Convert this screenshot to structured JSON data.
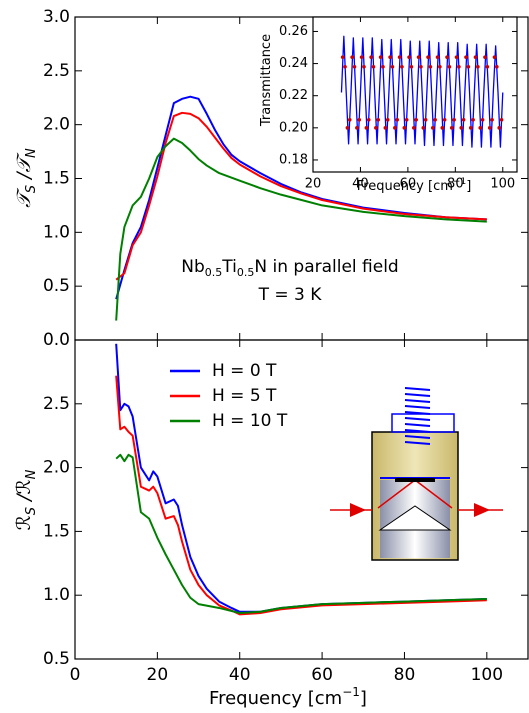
{
  "chart_data": [
    {
      "type": "line",
      "ylabel_parts": [
        "𝒯",
        "S",
        " /𝒯",
        "N"
      ],
      "annotation_parts": [
        "Nb",
        "0.5",
        "Ti",
        "0.5",
        "N in parallel field"
      ],
      "annotation2": "T = 3 K",
      "xlim": [
        0,
        110
      ],
      "xticks": [
        0,
        20,
        40,
        60,
        80,
        100
      ],
      "ylim": [
        0,
        3
      ],
      "yticks": [
        {
          "value": 0,
          "label": "0.0"
        },
        {
          "value": 0.5,
          "label": "0.5"
        },
        {
          "value": 1,
          "label": "1.0"
        },
        {
          "value": 1.5,
          "label": "1.5"
        },
        {
          "value": 2,
          "label": "2.0"
        },
        {
          "value": 2.5,
          "label": "2.5"
        },
        {
          "value": 3,
          "label": "3.0"
        }
      ],
      "series": [
        {
          "color": "#0000ff",
          "x": [
            10,
            12,
            14,
            16,
            18,
            20,
            22,
            24,
            26,
            28,
            30,
            32,
            34,
            36,
            38,
            40,
            45,
            50,
            55,
            60,
            70,
            80,
            90,
            100
          ],
          "values": [
            0.38,
            0.65,
            0.9,
            1.05,
            1.3,
            1.6,
            1.9,
            2.2,
            2.24,
            2.26,
            2.24,
            2.1,
            1.95,
            1.82,
            1.72,
            1.66,
            1.55,
            1.45,
            1.37,
            1.31,
            1.23,
            1.18,
            1.14,
            1.12
          ]
        },
        {
          "color": "#ff0000",
          "x": [
            10,
            12,
            14,
            16,
            18,
            20,
            22,
            24,
            26,
            28,
            30,
            32,
            34,
            36,
            38,
            40,
            45,
            50,
            55,
            60,
            70,
            80,
            90,
            100
          ],
          "values": [
            0.56,
            0.62,
            0.88,
            1.0,
            1.25,
            1.52,
            1.83,
            2.08,
            2.11,
            2.1,
            2.06,
            1.98,
            1.88,
            1.78,
            1.69,
            1.63,
            1.52,
            1.43,
            1.36,
            1.3,
            1.22,
            1.17,
            1.14,
            1.12
          ]
        },
        {
          "color": "#008000",
          "x": [
            10,
            11,
            12,
            14,
            16,
            18,
            20,
            22,
            24,
            26,
            28,
            30,
            32,
            35,
            40,
            45,
            50,
            55,
            60,
            70,
            80,
            90,
            100
          ],
          "values": [
            0.18,
            0.8,
            1.05,
            1.25,
            1.33,
            1.5,
            1.7,
            1.8,
            1.87,
            1.83,
            1.76,
            1.68,
            1.62,
            1.55,
            1.48,
            1.41,
            1.35,
            1.3,
            1.25,
            1.19,
            1.15,
            1.12,
            1.1
          ]
        }
      ]
    },
    {
      "type": "line",
      "ylabel_parts": [
        "ℛ",
        "S",
        " /ℛ",
        "N"
      ],
      "xlabel_parts": [
        "Frequency [cm",
        "−1",
        "]"
      ],
      "xlim": [
        0,
        110
      ],
      "xticks": [
        0,
        20,
        40,
        60,
        80,
        100
      ],
      "ylim": [
        0.5,
        3
      ],
      "yticks": [
        {
          "value": 0.5,
          "label": "0.5"
        },
        {
          "value": 1,
          "label": "1.0"
        },
        {
          "value": 1.5,
          "label": "1.5"
        },
        {
          "value": 2,
          "label": "2.0"
        },
        {
          "value": 2.5,
          "label": "2.5"
        }
      ],
      "legend": "upper left",
      "series": [
        {
          "name": "H = 0 T",
          "color": "#0000ff",
          "x": [
            10,
            11,
            12,
            13,
            14,
            16,
            18,
            19,
            20,
            22,
            24,
            25,
            26,
            28,
            30,
            32,
            35,
            38,
            40,
            45,
            50,
            60,
            70,
            80,
            90,
            100
          ],
          "values": [
            2.97,
            2.45,
            2.5,
            2.48,
            2.4,
            2.0,
            1.9,
            1.97,
            1.93,
            1.72,
            1.75,
            1.7,
            1.55,
            1.3,
            1.15,
            1.05,
            0.95,
            0.9,
            0.87,
            0.87,
            0.9,
            0.93,
            0.94,
            0.95,
            0.96,
            0.97
          ]
        },
        {
          "name": "H = 5 T",
          "color": "#ff0000",
          "x": [
            10,
            11,
            12,
            13,
            14,
            16,
            18,
            19,
            20,
            22,
            24,
            25,
            26,
            28,
            30,
            32,
            35,
            38,
            40,
            45,
            50,
            60,
            70,
            80,
            90,
            100
          ],
          "values": [
            2.72,
            2.3,
            2.32,
            2.28,
            2.25,
            1.85,
            1.82,
            1.85,
            1.8,
            1.6,
            1.62,
            1.55,
            1.42,
            1.2,
            1.08,
            1.0,
            0.92,
            0.88,
            0.85,
            0.86,
            0.89,
            0.92,
            0.93,
            0.94,
            0.95,
            0.96
          ]
        },
        {
          "name": "H = 10 T",
          "color": "#008000",
          "x": [
            10,
            11,
            12,
            13,
            14,
            16,
            18,
            20,
            22,
            24,
            26,
            28,
            30,
            35,
            40,
            45,
            50,
            60,
            70,
            80,
            90,
            100
          ],
          "values": [
            2.07,
            2.1,
            2.05,
            2.1,
            2.08,
            1.65,
            1.6,
            1.45,
            1.32,
            1.2,
            1.08,
            0.98,
            0.93,
            0.9,
            0.86,
            0.87,
            0.9,
            0.93,
            0.94,
            0.95,
            0.96,
            0.97
          ]
        }
      ]
    },
    {
      "type": "line",
      "ylabel": "Transmittance",
      "xlabel_parts": [
        "Frequency [cm",
        "−1",
        "]"
      ],
      "xlim": [
        20,
        106
      ],
      "xticks": [
        20,
        40,
        60,
        80,
        100
      ],
      "ylim": [
        0.1725,
        0.269
      ],
      "yticks": [
        0.18,
        {
          "value": 0.2,
          "label": "0.20"
        },
        0.22,
        0.24,
        0.26
      ],
      "series": [
        {
          "color": "#0000ff",
          "x": [
            32,
            33,
            34,
            35,
            36,
            37,
            38,
            39,
            40,
            41,
            42,
            43,
            44,
            45,
            46,
            47,
            48,
            49,
            50,
            51,
            52,
            53,
            54,
            55,
            56,
            57,
            58,
            59,
            60,
            61,
            62,
            63,
            64,
            65,
            66,
            67,
            68,
            69,
            70,
            71,
            72,
            73,
            74,
            75,
            76,
            77,
            78,
            79,
            80,
            81,
            82,
            83,
            84,
            85,
            86,
            87,
            88,
            89,
            90,
            91,
            92,
            93,
            94,
            95,
            96,
            97,
            98,
            99,
            100
          ],
          "values": [
            0.222,
            0.257,
            0.222,
            0.19,
            0.222,
            0.256,
            0.222,
            0.19,
            0.222,
            0.256,
            0.222,
            0.19,
            0.222,
            0.256,
            0.222,
            0.19,
            0.222,
            0.255,
            0.222,
            0.19,
            0.222,
            0.255,
            0.222,
            0.19,
            0.222,
            0.255,
            0.222,
            0.19,
            0.222,
            0.254,
            0.222,
            0.19,
            0.222,
            0.254,
            0.222,
            0.189,
            0.222,
            0.254,
            0.222,
            0.189,
            0.222,
            0.253,
            0.222,
            0.189,
            0.222,
            0.253,
            0.222,
            0.189,
            0.222,
            0.253,
            0.222,
            0.189,
            0.222,
            0.252,
            0.222,
            0.188,
            0.222,
            0.252,
            0.222,
            0.188,
            0.222,
            0.252,
            0.222,
            0.188,
            0.222,
            0.251,
            0.222,
            0.188,
            0.222
          ]
        },
        {
          "color": "#cc0000",
          "marker": true,
          "x": [
            32.5,
            33.5,
            34.5,
            35.5,
            36.5,
            37.5,
            38.5,
            39.5,
            40.5,
            41.5,
            42.5,
            43.5,
            44.5,
            45.5,
            46.5,
            47.5,
            48.5,
            49.5,
            50.5,
            51.5,
            52.5,
            53.5,
            54.5,
            55.5,
            56.5,
            57.5,
            58.5,
            59.5,
            60.5,
            61.5,
            62.5,
            63.5,
            64.5,
            65.5,
            66.5,
            67.5,
            68.5,
            69.5,
            70.5,
            71.5,
            72.5,
            73.5,
            74.5,
            75.5,
            76.5,
            77.5,
            78.5,
            79.5,
            80.5,
            81.5,
            82.5,
            83.5,
            84.5,
            85.5,
            86.5,
            87.5,
            88.5,
            89.5,
            90.5,
            91.5,
            92.5,
            93.5,
            94.5,
            95.5,
            96.5,
            97.5,
            98.5,
            99.5
          ],
          "values": [
            0.244,
            0.238,
            0.2,
            0.205,
            0.244,
            0.238,
            0.2,
            0.205,
            0.244,
            0.238,
            0.2,
            0.205,
            0.244,
            0.238,
            0.2,
            0.205,
            0.244,
            0.238,
            0.2,
            0.205,
            0.244,
            0.238,
            0.2,
            0.205,
            0.244,
            0.238,
            0.2,
            0.205,
            0.244,
            0.238,
            0.2,
            0.205,
            0.244,
            0.238,
            0.2,
            0.205,
            0.244,
            0.238,
            0.2,
            0.205,
            0.244,
            0.238,
            0.2,
            0.205,
            0.244,
            0.238,
            0.2,
            0.205,
            0.244,
            0.238,
            0.2,
            0.205,
            0.244,
            0.238,
            0.2,
            0.205,
            0.244,
            0.238,
            0.2,
            0.205,
            0.244,
            0.238,
            0.2,
            0.205,
            0.244,
            0.238,
            0.2,
            0.205
          ]
        }
      ]
    }
  ]
}
